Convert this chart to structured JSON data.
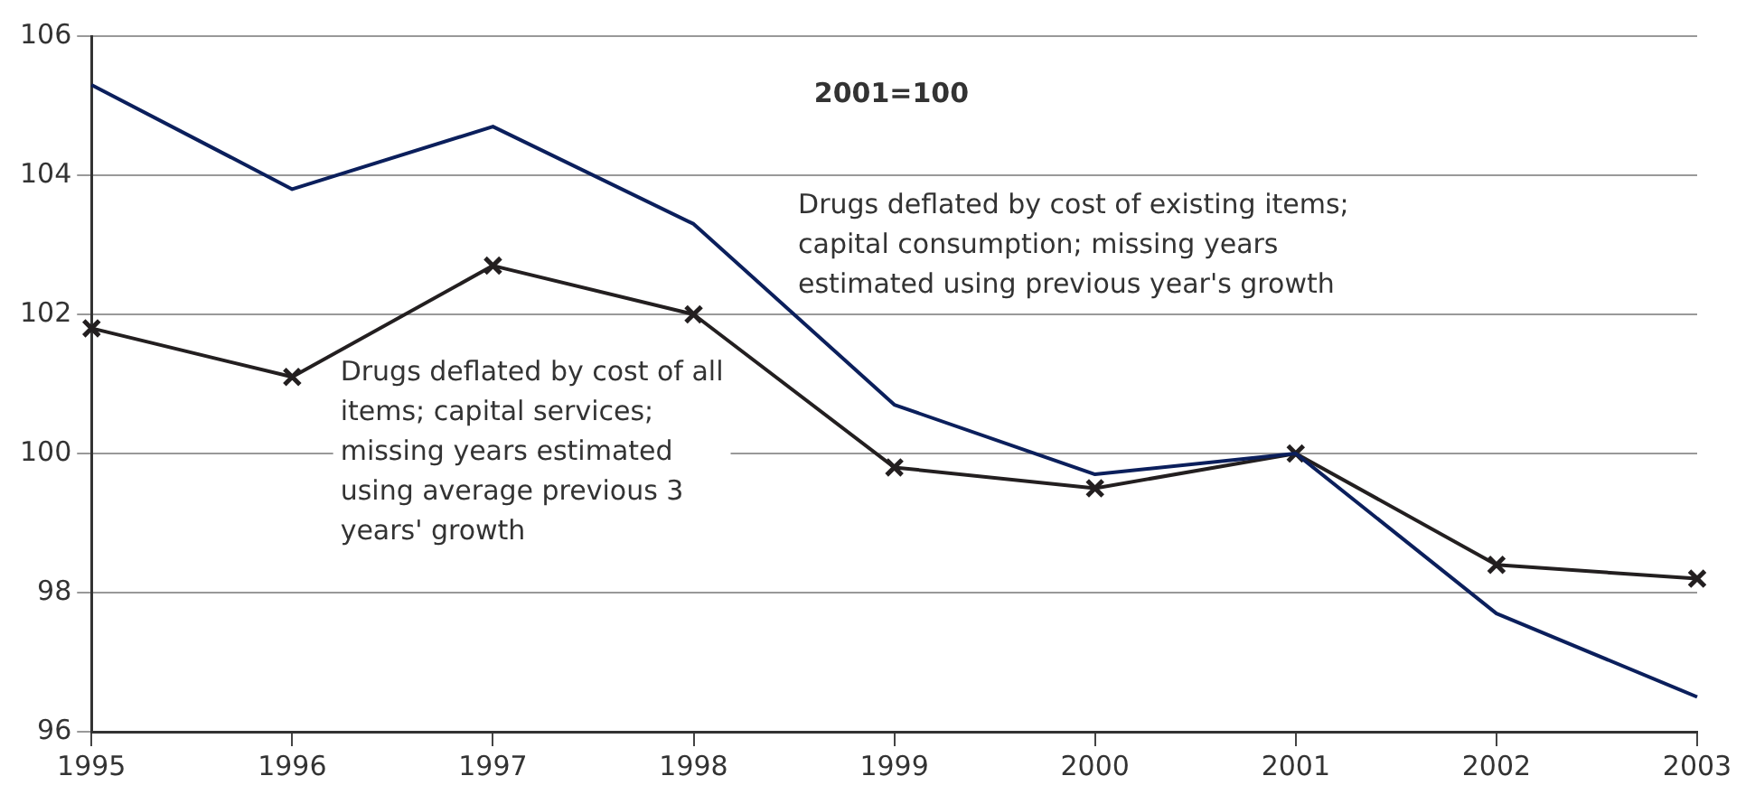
{
  "chart_data": {
    "type": "line",
    "categories": [
      "1995",
      "1996",
      "1997",
      "1998",
      "1999",
      "2000",
      "2001",
      "2002",
      "2003"
    ],
    "series": [
      {
        "color": "#0b1f5c",
        "marker": "none",
        "values": [
          105.3,
          103.8,
          104.7,
          103.3,
          100.7,
          99.7,
          100,
          97.7,
          96.5
        ]
      },
      {
        "color": "#231f20",
        "marker": "cross",
        "values": [
          101.8,
          101.1,
          102.7,
          102.0,
          99.8,
          99.5,
          100,
          98.4,
          98.2
        ]
      }
    ],
    "ylim": [
      96,
      106
    ],
    "yticks": [
      96,
      98,
      100,
      102,
      104,
      106
    ],
    "grid": "y",
    "line_style": "solid",
    "annotations": [
      "2001=100",
      "Drugs deflated by cost of existing items; capital consumption; missing years estimated using previous year's growth",
      "Drugs deflated by cost of all items; capital services; missing years estimated using average previous 3 years' growth"
    ]
  }
}
